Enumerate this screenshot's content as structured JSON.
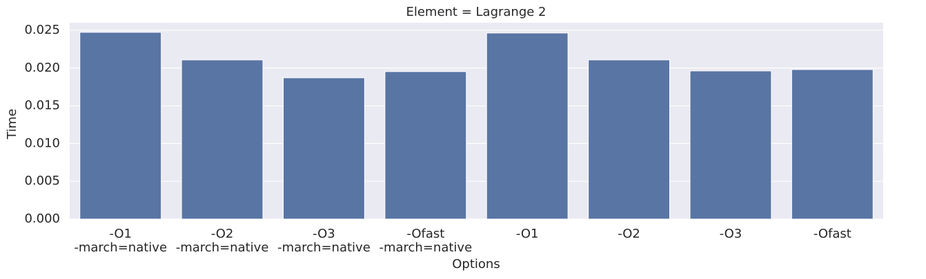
{
  "chart_data": {
    "type": "bar",
    "title": "Element = Lagrange 2",
    "x_label": "Options",
    "y_label": "Time",
    "categories": [
      "-O1\n-march=native",
      "-O2\n-march=native",
      "-O3\n-march=native",
      "-Ofast\n-march=native",
      "-O1",
      "-O2",
      "-O3",
      "-Ofast"
    ],
    "values": [
      0.02473,
      0.02108,
      0.01871,
      0.01953,
      0.02464,
      0.02108,
      0.01962,
      0.0198
    ],
    "color": "#5975a4",
    "ylim": [
      0,
      0.026
    ],
    "yticks": [
      {
        "value": 0,
        "label": "0.000"
      },
      {
        "value": 0.005,
        "label": "0.005"
      },
      {
        "value": 0.01,
        "label": "0.010"
      },
      {
        "value": 0.015,
        "label": "0.015"
      },
      {
        "value": 0.02,
        "label": "0.020"
      },
      {
        "value": 0.025,
        "label": "0.025"
      }
    ],
    "grid": true
  }
}
